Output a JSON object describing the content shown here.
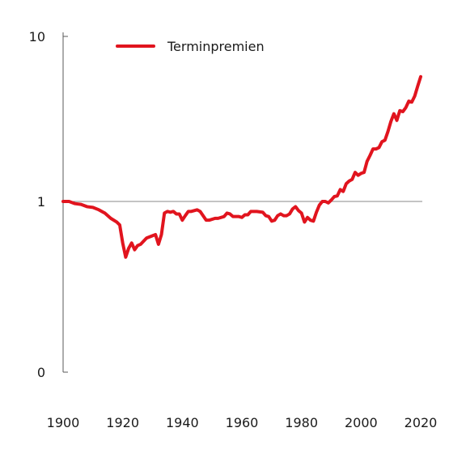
{
  "chart_data": {
    "type": "line",
    "title": "",
    "xlabel": "",
    "ylabel": "",
    "y_scale": "log",
    "ylim_display": [
      0,
      10
    ],
    "reference_line_y": 1,
    "grid": false,
    "legend_position": "top-left",
    "x_ticks": [
      "1900",
      "1920",
      "1940",
      "1960",
      "1980",
      "2000",
      "2020"
    ],
    "y_ticks": [
      "0",
      "1",
      "10"
    ],
    "series": [
      {
        "name": "Terminpremien",
        "color": "#e1141e",
        "points": [
          [
            1900,
            1.0
          ],
          [
            1902,
            1.0
          ],
          [
            1904,
            0.97
          ],
          [
            1906,
            0.96
          ],
          [
            1908,
            0.93
          ],
          [
            1910,
            0.92
          ],
          [
            1912,
            0.89
          ],
          [
            1914,
            0.85
          ],
          [
            1916,
            0.79
          ],
          [
            1918,
            0.75
          ],
          [
            1919,
            0.72
          ],
          [
            1920,
            0.56
          ],
          [
            1921,
            0.46
          ],
          [
            1922,
            0.52
          ],
          [
            1923,
            0.56
          ],
          [
            1924,
            0.51
          ],
          [
            1925,
            0.54
          ],
          [
            1926,
            0.55
          ],
          [
            1928,
            0.6
          ],
          [
            1930,
            0.62
          ],
          [
            1931,
            0.63
          ],
          [
            1932,
            0.55
          ],
          [
            1933,
            0.63
          ],
          [
            1934,
            0.85
          ],
          [
            1935,
            0.87
          ],
          [
            1936,
            0.86
          ],
          [
            1937,
            0.87
          ],
          [
            1938,
            0.84
          ],
          [
            1939,
            0.84
          ],
          [
            1940,
            0.77
          ],
          [
            1941,
            0.82
          ],
          [
            1942,
            0.87
          ],
          [
            1943,
            0.87
          ],
          [
            1945,
            0.89
          ],
          [
            1946,
            0.87
          ],
          [
            1948,
            0.77
          ],
          [
            1949,
            0.77
          ],
          [
            1951,
            0.79
          ],
          [
            1952,
            0.79
          ],
          [
            1954,
            0.81
          ],
          [
            1955,
            0.85
          ],
          [
            1956,
            0.84
          ],
          [
            1957,
            0.81
          ],
          [
            1959,
            0.81
          ],
          [
            1960,
            0.8
          ],
          [
            1961,
            0.83
          ],
          [
            1962,
            0.83
          ],
          [
            1963,
            0.87
          ],
          [
            1965,
            0.87
          ],
          [
            1967,
            0.86
          ],
          [
            1968,
            0.82
          ],
          [
            1969,
            0.81
          ],
          [
            1970,
            0.76
          ],
          [
            1971,
            0.77
          ],
          [
            1972,
            0.82
          ],
          [
            1973,
            0.84
          ],
          [
            1974,
            0.82
          ],
          [
            1975,
            0.82
          ],
          [
            1976,
            0.84
          ],
          [
            1977,
            0.9
          ],
          [
            1978,
            0.93
          ],
          [
            1979,
            0.88
          ],
          [
            1980,
            0.85
          ],
          [
            1981,
            0.75
          ],
          [
            1982,
            0.8
          ],
          [
            1983,
            0.77
          ],
          [
            1984,
            0.76
          ],
          [
            1985,
            0.86
          ],
          [
            1986,
            0.95
          ],
          [
            1987,
            1.0
          ],
          [
            1988,
            1.0
          ],
          [
            1989,
            0.98
          ],
          [
            1990,
            1.02
          ],
          [
            1991,
            1.07
          ],
          [
            1992,
            1.08
          ],
          [
            1993,
            1.18
          ],
          [
            1994,
            1.15
          ],
          [
            1995,
            1.28
          ],
          [
            1996,
            1.33
          ],
          [
            1997,
            1.36
          ],
          [
            1998,
            1.5
          ],
          [
            1999,
            1.44
          ],
          [
            2000,
            1.48
          ],
          [
            2001,
            1.5
          ],
          [
            2002,
            1.75
          ],
          [
            2003,
            1.9
          ],
          [
            2004,
            2.08
          ],
          [
            2005,
            2.08
          ],
          [
            2006,
            2.12
          ],
          [
            2007,
            2.3
          ],
          [
            2008,
            2.35
          ],
          [
            2009,
            2.65
          ],
          [
            2010,
            3.05
          ],
          [
            2011,
            3.4
          ],
          [
            2012,
            3.1
          ],
          [
            2013,
            3.55
          ],
          [
            2014,
            3.5
          ],
          [
            2015,
            3.7
          ],
          [
            2016,
            4.05
          ],
          [
            2017,
            4.0
          ],
          [
            2018,
            4.35
          ],
          [
            2019,
            5.0
          ],
          [
            2020,
            5.7
          ]
        ]
      }
    ]
  }
}
